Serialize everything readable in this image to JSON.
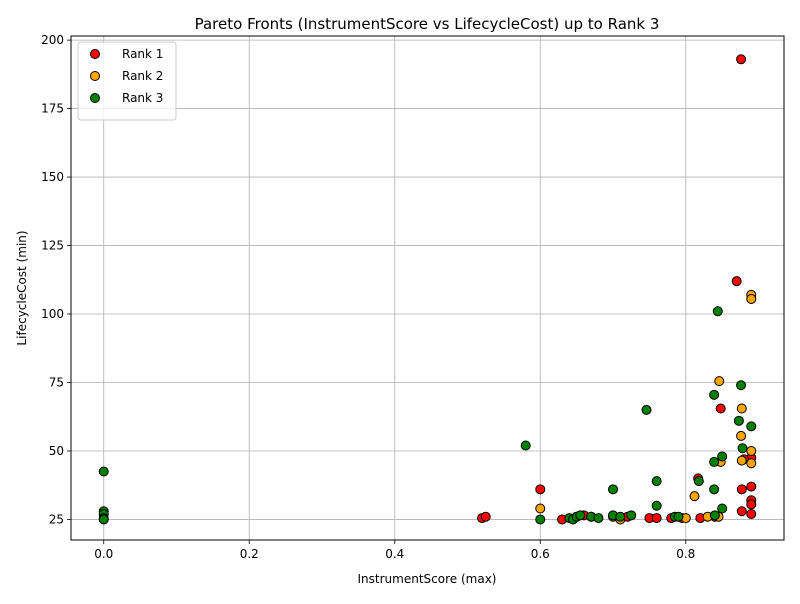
{
  "chart_data": {
    "type": "scatter",
    "title": "Pareto Fronts (InstrumentScore vs LifecycleCost) up to Rank 3",
    "xlabel": "InstrumentScore (max)",
    "ylabel": "LifecycleCost (min)",
    "xlim": [
      -0.045,
      0.935
    ],
    "ylim": [
      17.5,
      201.5
    ],
    "xticks": [
      0.0,
      0.2,
      0.4,
      0.6,
      0.8
    ],
    "xtick_labels": [
      "0.0",
      "0.2",
      "0.4",
      "0.6",
      "0.8"
    ],
    "yticks": [
      25,
      50,
      75,
      100,
      125,
      150,
      175,
      200
    ],
    "ytick_labels": [
      "25",
      "50",
      "75",
      "100",
      "125",
      "150",
      "175",
      "200"
    ],
    "grid": true,
    "legend_position": "top-left",
    "series": [
      {
        "name": "Rank 1",
        "color": "#ff0000",
        "points": [
          [
            0.876,
            193
          ],
          [
            0.87,
            112
          ],
          [
            0.848,
            65.5
          ],
          [
            0.89,
            47.5
          ],
          [
            0.88,
            47
          ],
          [
            0.89,
            37
          ],
          [
            0.877,
            36
          ],
          [
            0.817,
            40
          ],
          [
            0.89,
            32
          ],
          [
            0.89,
            30.5
          ],
          [
            0.877,
            28
          ],
          [
            0.89,
            27
          ],
          [
            0.6,
            36
          ],
          [
            0.52,
            25.5
          ],
          [
            0.525,
            26
          ],
          [
            0.63,
            25
          ],
          [
            0.65,
            26
          ],
          [
            0.66,
            26.5
          ],
          [
            0.67,
            26
          ],
          [
            0.71,
            25.5
          ],
          [
            0.72,
            26
          ],
          [
            0.75,
            25.5
          ],
          [
            0.76,
            25.5
          ],
          [
            0.78,
            25.5
          ],
          [
            0.795,
            25.5
          ],
          [
            0.82,
            25.5
          ],
          [
            0.84,
            26
          ]
        ]
      },
      {
        "name": "Rank 2",
        "color": "#ffa500",
        "points": [
          [
            0.89,
            107
          ],
          [
            0.89,
            105.5
          ],
          [
            0.846,
            75.5
          ],
          [
            0.877,
            65.5
          ],
          [
            0.876,
            55.5
          ],
          [
            0.89,
            50
          ],
          [
            0.89,
            45.5
          ],
          [
            0.877,
            46.5
          ],
          [
            0.848,
            46
          ],
          [
            0.812,
            33.5
          ],
          [
            0.6,
            29
          ],
          [
            0.7,
            26
          ],
          [
            0.71,
            25
          ],
          [
            0.8,
            25.5
          ],
          [
            0.83,
            26
          ],
          [
            0.845,
            26
          ]
        ]
      },
      {
        "name": "Rank 3",
        "color": "#008000",
        "points": [
          [
            0.844,
            101
          ],
          [
            0.876,
            74
          ],
          [
            0.746,
            65
          ],
          [
            0.839,
            70.5
          ],
          [
            0.873,
            61
          ],
          [
            0.89,
            59
          ],
          [
            0.58,
            52
          ],
          [
            0.878,
            51
          ],
          [
            0.85,
            48
          ],
          [
            0.839,
            46
          ],
          [
            0.76,
            39
          ],
          [
            0.818,
            39
          ],
          [
            0.839,
            36
          ],
          [
            0.7,
            36
          ],
          [
            0.76,
            30
          ],
          [
            0.85,
            29
          ],
          [
            0.0,
            42.5
          ],
          [
            0.0,
            28
          ],
          [
            0.0,
            27
          ],
          [
            0.0,
            25.5
          ],
          [
            0.0,
            25
          ],
          [
            0.6,
            25
          ],
          [
            0.64,
            25.5
          ],
          [
            0.645,
            25
          ],
          [
            0.65,
            26
          ],
          [
            0.655,
            26.5
          ],
          [
            0.67,
            26
          ],
          [
            0.68,
            25.5
          ],
          [
            0.7,
            26.5
          ],
          [
            0.71,
            26
          ],
          [
            0.725,
            26.5
          ],
          [
            0.785,
            26
          ],
          [
            0.79,
            26
          ],
          [
            0.84,
            26.5
          ]
        ]
      }
    ]
  }
}
